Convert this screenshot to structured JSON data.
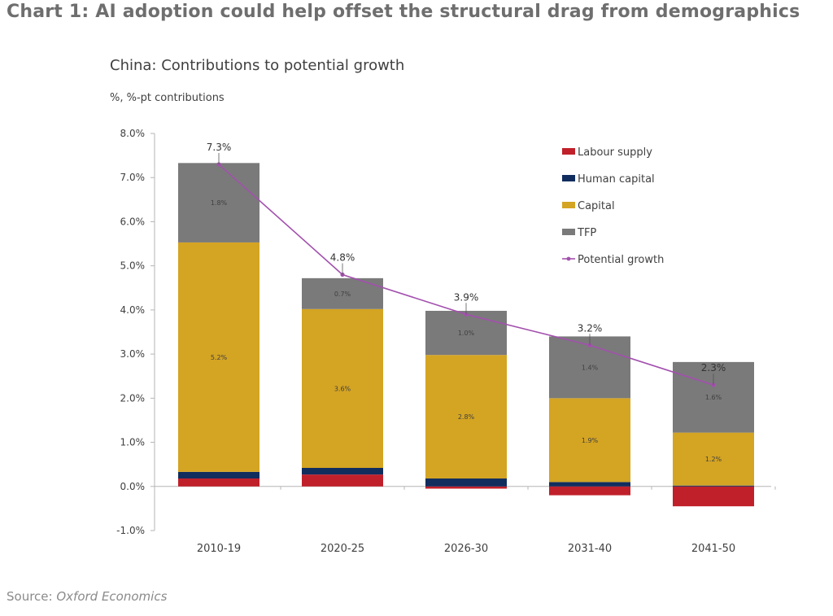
{
  "figure": {
    "title": "Chart 1: AI adoption could help offset the structural drag from demographics",
    "source_label": "Source:",
    "source_name": "Oxford Economics"
  },
  "chart_data": {
    "type": "bar",
    "stacked": true,
    "title": "China: Contributions to potential growth",
    "subtitle": "%, %-pt contributions",
    "categories": [
      "2010-19",
      "2020-25",
      "2026-30",
      "2031-40",
      "2041-50"
    ],
    "ylim": [
      -1.0,
      8.0
    ],
    "yticks": [
      -1.0,
      0.0,
      1.0,
      2.0,
      3.0,
      4.0,
      5.0,
      6.0,
      7.0,
      8.0
    ],
    "ytick_labels": [
      "-1.0%",
      "0.0%",
      "1.0%",
      "2.0%",
      "3.0%",
      "4.0%",
      "5.0%",
      "6.0%",
      "7.0%",
      "8.0%"
    ],
    "grid": false,
    "legend_position": "top-right",
    "series": [
      {
        "name": "Labour supply",
        "color": "#c0202a",
        "values": [
          0.18,
          0.27,
          -0.05,
          -0.2,
          -0.45
        ]
      },
      {
        "name": "Human capital",
        "color": "#112d5e",
        "values": [
          0.15,
          0.15,
          0.18,
          0.1,
          0.02
        ]
      },
      {
        "name": "Capital",
        "color": "#d4a423",
        "values": [
          5.2,
          3.6,
          2.8,
          1.9,
          1.2
        ],
        "labels": [
          "5.2%",
          "3.6%",
          "2.8%",
          "1.9%",
          "1.2%"
        ]
      },
      {
        "name": "TFP",
        "color": "#7a7a7a",
        "values": [
          1.8,
          0.7,
          1.0,
          1.4,
          1.6
        ],
        "labels": [
          "1.8%",
          "0.7%",
          "1.0%",
          "1.4%",
          "1.6%"
        ]
      }
    ],
    "line": {
      "name": "Potential growth",
      "color": "#a350ae",
      "values": [
        7.3,
        4.8,
        3.9,
        3.2,
        2.3
      ],
      "labels": [
        "7.3%",
        "4.8%",
        "3.9%",
        "3.2%",
        "2.3%"
      ]
    }
  }
}
